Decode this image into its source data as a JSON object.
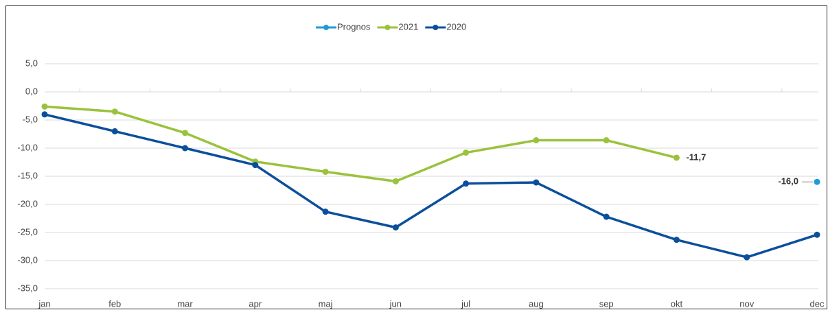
{
  "chart_data": {
    "type": "line",
    "categories": [
      "jan",
      "feb",
      "mar",
      "apr",
      "maj",
      "jun",
      "jul",
      "aug",
      "sep",
      "okt",
      "nov",
      "dec"
    ],
    "series": [
      {
        "name": "Prognos",
        "color": "#1f9bd7",
        "values": [
          null,
          null,
          null,
          null,
          null,
          null,
          null,
          null,
          null,
          null,
          null,
          -16.0
        ],
        "value_labels": [
          null,
          null,
          null,
          null,
          null,
          null,
          null,
          null,
          null,
          null,
          null,
          "-16,0"
        ]
      },
      {
        "name": "2021",
        "color": "#9bc23c",
        "values": [
          -2.6,
          -3.5,
          -7.3,
          -12.4,
          -14.2,
          -15.9,
          -10.8,
          -8.6,
          -8.6,
          -11.7,
          null,
          null
        ],
        "value_labels": [
          null,
          null,
          null,
          null,
          null,
          null,
          null,
          null,
          null,
          "-11,7",
          null,
          null
        ]
      },
      {
        "name": "2020",
        "color": "#0b4f9c",
        "values": [
          -4.0,
          -7.0,
          -10.0,
          -13.0,
          -21.3,
          -24.1,
          -16.3,
          -16.1,
          -22.2,
          -26.3,
          -29.4,
          -25.4
        ]
      }
    ],
    "ylim": [
      -35,
      5
    ],
    "yticks": [
      {
        "value": 5,
        "label": "5,0"
      },
      {
        "value": 0,
        "label": "0,0"
      },
      {
        "value": -5,
        "label": "-5,0"
      },
      {
        "value": -10,
        "label": "-10,0"
      },
      {
        "value": -15,
        "label": "-15,0"
      },
      {
        "value": -20,
        "label": "-20,0"
      },
      {
        "value": -25,
        "label": "-25,0"
      },
      {
        "value": -30,
        "label": "-30,0"
      },
      {
        "value": -35,
        "label": "-35,0"
      }
    ],
    "grid": true
  }
}
